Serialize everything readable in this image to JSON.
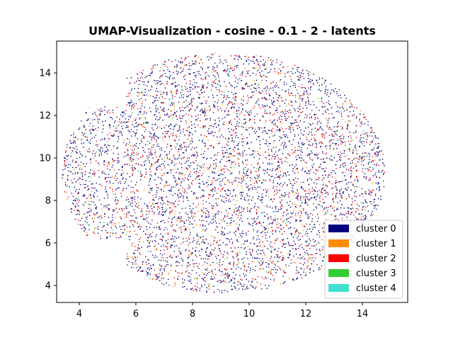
{
  "chart_data": {
    "type": "scatter",
    "title": "UMAP-Visualization - cosine - 0.1 - 2 - latents",
    "xlabel": "",
    "ylabel": "",
    "xlim": [
      3.2,
      15.6
    ],
    "ylim": [
      3.2,
      15.5
    ],
    "xticks": [
      4,
      6,
      8,
      10,
      12,
      14
    ],
    "yticks": [
      4,
      6,
      8,
      10,
      12,
      14
    ],
    "grid": false,
    "legend_position": "lower-right",
    "series": [
      {
        "name": "cluster 0",
        "color": "#000080",
        "approx_points": 6500
      },
      {
        "name": "cluster 1",
        "color": "#ff8c00",
        "approx_points": 900
      },
      {
        "name": "cluster 2",
        "color": "#ff0000",
        "approx_points": 2200
      },
      {
        "name": "cluster 3",
        "color": "#32cd32",
        "approx_points": 250
      },
      {
        "name": "cluster 4",
        "color": "#40e0d0",
        "approx_points": 60
      }
    ],
    "point_cloud_extent": {
      "x_range": [
        3.4,
        14.8
      ],
      "y_range": [
        3.7,
        15.0
      ],
      "center": [
        9.1,
        9.3
      ],
      "shape": "ellipse"
    }
  }
}
